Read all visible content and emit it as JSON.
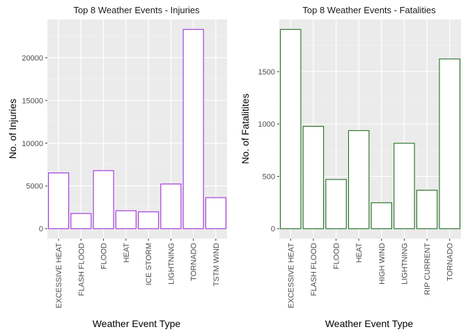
{
  "chart_data": [
    {
      "type": "bar",
      "title": "Top 8 Weather Events - Injuries",
      "xlabel": "Weather Event Type",
      "ylabel": "No. of Injuries",
      "categories": [
        "EXCESSIVE HEAT",
        "FLASH FLOOD",
        "FLOOD",
        "HEAT",
        "ICE STORM",
        "LIGHTNING",
        "TORNADO",
        "TSTM WIND"
      ],
      "values": [
        6525,
        1777,
        6789,
        2100,
        1975,
        5230,
        23300,
        3630
      ],
      "yticks": [
        0,
        5000,
        10000,
        15000,
        20000
      ],
      "ylim": [
        -1165,
        24465
      ],
      "bar_outline_color": "#9b30d9",
      "bar_fill_color": "#ffffff",
      "panel_background": "#ebebeb",
      "grid": true,
      "legend": "none"
    },
    {
      "type": "bar",
      "title": "Top 8 Weather Events - Fatalities",
      "xlabel": "Weather Event Type",
      "ylabel": "No. of Fatalitites",
      "categories": [
        "EXCESSIVE HEAT",
        "FLASH FLOOD",
        "FLOOD",
        "HEAT",
        "HIGH WIND",
        "LIGHTNING",
        "RIP CURRENT",
        "TORNADO"
      ],
      "values": [
        1903,
        978,
        470,
        937,
        248,
        816,
        368,
        1621
      ],
      "yticks": [
        0,
        500,
        1000,
        1500
      ],
      "ylim": [
        -95,
        1998
      ],
      "bar_outline_color": "#1f6b1f",
      "bar_fill_color": "#ffffff",
      "panel_background": "#ebebeb",
      "grid": true,
      "legend": "none"
    }
  ]
}
